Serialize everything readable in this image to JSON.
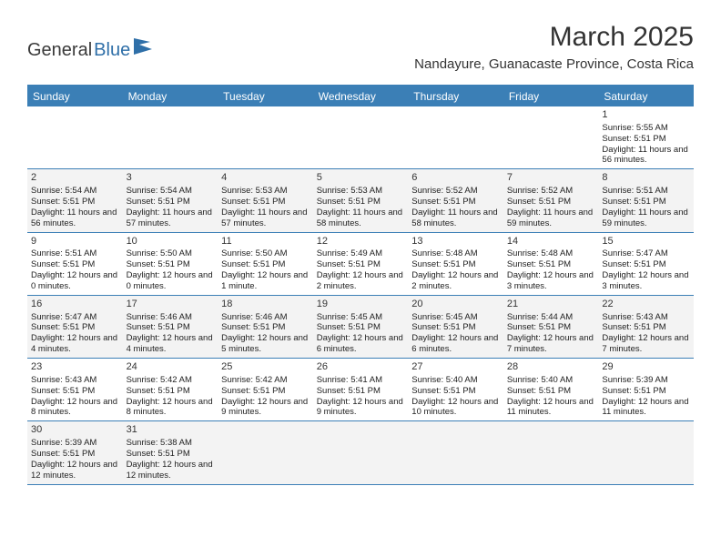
{
  "brand": {
    "part1": "General",
    "part2": "Blue"
  },
  "title": "March 2025",
  "location": "Nandayure, Guanacaste Province, Costa Rica",
  "colors": {
    "header_bg": "#3b7fb6",
    "header_text": "#ffffff",
    "alt_row_bg": "#f3f3f3",
    "text": "#222222",
    "brand_blue": "#2f6fa8"
  },
  "day_names": [
    "Sunday",
    "Monday",
    "Tuesday",
    "Wednesday",
    "Thursday",
    "Friday",
    "Saturday"
  ],
  "weeks": [
    [
      null,
      null,
      null,
      null,
      null,
      null,
      {
        "n": "1",
        "sr": "Sunrise: 5:55 AM",
        "ss": "Sunset: 5:51 PM",
        "dl": "Daylight: 11 hours and 56 minutes."
      }
    ],
    [
      {
        "n": "2",
        "sr": "Sunrise: 5:54 AM",
        "ss": "Sunset: 5:51 PM",
        "dl": "Daylight: 11 hours and 56 minutes."
      },
      {
        "n": "3",
        "sr": "Sunrise: 5:54 AM",
        "ss": "Sunset: 5:51 PM",
        "dl": "Daylight: 11 hours and 57 minutes."
      },
      {
        "n": "4",
        "sr": "Sunrise: 5:53 AM",
        "ss": "Sunset: 5:51 PM",
        "dl": "Daylight: 11 hours and 57 minutes."
      },
      {
        "n": "5",
        "sr": "Sunrise: 5:53 AM",
        "ss": "Sunset: 5:51 PM",
        "dl": "Daylight: 11 hours and 58 minutes."
      },
      {
        "n": "6",
        "sr": "Sunrise: 5:52 AM",
        "ss": "Sunset: 5:51 PM",
        "dl": "Daylight: 11 hours and 58 minutes."
      },
      {
        "n": "7",
        "sr": "Sunrise: 5:52 AM",
        "ss": "Sunset: 5:51 PM",
        "dl": "Daylight: 11 hours and 59 minutes."
      },
      {
        "n": "8",
        "sr": "Sunrise: 5:51 AM",
        "ss": "Sunset: 5:51 PM",
        "dl": "Daylight: 11 hours and 59 minutes."
      }
    ],
    [
      {
        "n": "9",
        "sr": "Sunrise: 5:51 AM",
        "ss": "Sunset: 5:51 PM",
        "dl": "Daylight: 12 hours and 0 minutes."
      },
      {
        "n": "10",
        "sr": "Sunrise: 5:50 AM",
        "ss": "Sunset: 5:51 PM",
        "dl": "Daylight: 12 hours and 0 minutes."
      },
      {
        "n": "11",
        "sr": "Sunrise: 5:50 AM",
        "ss": "Sunset: 5:51 PM",
        "dl": "Daylight: 12 hours and 1 minute."
      },
      {
        "n": "12",
        "sr": "Sunrise: 5:49 AM",
        "ss": "Sunset: 5:51 PM",
        "dl": "Daylight: 12 hours and 2 minutes."
      },
      {
        "n": "13",
        "sr": "Sunrise: 5:48 AM",
        "ss": "Sunset: 5:51 PM",
        "dl": "Daylight: 12 hours and 2 minutes."
      },
      {
        "n": "14",
        "sr": "Sunrise: 5:48 AM",
        "ss": "Sunset: 5:51 PM",
        "dl": "Daylight: 12 hours and 3 minutes."
      },
      {
        "n": "15",
        "sr": "Sunrise: 5:47 AM",
        "ss": "Sunset: 5:51 PM",
        "dl": "Daylight: 12 hours and 3 minutes."
      }
    ],
    [
      {
        "n": "16",
        "sr": "Sunrise: 5:47 AM",
        "ss": "Sunset: 5:51 PM",
        "dl": "Daylight: 12 hours and 4 minutes."
      },
      {
        "n": "17",
        "sr": "Sunrise: 5:46 AM",
        "ss": "Sunset: 5:51 PM",
        "dl": "Daylight: 12 hours and 4 minutes."
      },
      {
        "n": "18",
        "sr": "Sunrise: 5:46 AM",
        "ss": "Sunset: 5:51 PM",
        "dl": "Daylight: 12 hours and 5 minutes."
      },
      {
        "n": "19",
        "sr": "Sunrise: 5:45 AM",
        "ss": "Sunset: 5:51 PM",
        "dl": "Daylight: 12 hours and 6 minutes."
      },
      {
        "n": "20",
        "sr": "Sunrise: 5:45 AM",
        "ss": "Sunset: 5:51 PM",
        "dl": "Daylight: 12 hours and 6 minutes."
      },
      {
        "n": "21",
        "sr": "Sunrise: 5:44 AM",
        "ss": "Sunset: 5:51 PM",
        "dl": "Daylight: 12 hours and 7 minutes."
      },
      {
        "n": "22",
        "sr": "Sunrise: 5:43 AM",
        "ss": "Sunset: 5:51 PM",
        "dl": "Daylight: 12 hours and 7 minutes."
      }
    ],
    [
      {
        "n": "23",
        "sr": "Sunrise: 5:43 AM",
        "ss": "Sunset: 5:51 PM",
        "dl": "Daylight: 12 hours and 8 minutes."
      },
      {
        "n": "24",
        "sr": "Sunrise: 5:42 AM",
        "ss": "Sunset: 5:51 PM",
        "dl": "Daylight: 12 hours and 8 minutes."
      },
      {
        "n": "25",
        "sr": "Sunrise: 5:42 AM",
        "ss": "Sunset: 5:51 PM",
        "dl": "Daylight: 12 hours and 9 minutes."
      },
      {
        "n": "26",
        "sr": "Sunrise: 5:41 AM",
        "ss": "Sunset: 5:51 PM",
        "dl": "Daylight: 12 hours and 9 minutes."
      },
      {
        "n": "27",
        "sr": "Sunrise: 5:40 AM",
        "ss": "Sunset: 5:51 PM",
        "dl": "Daylight: 12 hours and 10 minutes."
      },
      {
        "n": "28",
        "sr": "Sunrise: 5:40 AM",
        "ss": "Sunset: 5:51 PM",
        "dl": "Daylight: 12 hours and 11 minutes."
      },
      {
        "n": "29",
        "sr": "Sunrise: 5:39 AM",
        "ss": "Sunset: 5:51 PM",
        "dl": "Daylight: 12 hours and 11 minutes."
      }
    ],
    [
      {
        "n": "30",
        "sr": "Sunrise: 5:39 AM",
        "ss": "Sunset: 5:51 PM",
        "dl": "Daylight: 12 hours and 12 minutes."
      },
      {
        "n": "31",
        "sr": "Sunrise: 5:38 AM",
        "ss": "Sunset: 5:51 PM",
        "dl": "Daylight: 12 hours and 12 minutes."
      },
      null,
      null,
      null,
      null,
      null
    ]
  ]
}
